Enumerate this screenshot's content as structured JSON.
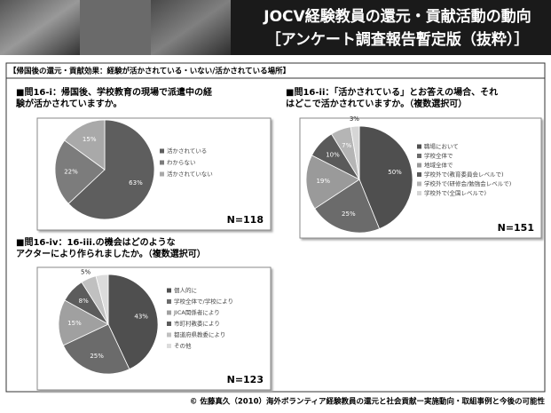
{
  "header": {
    "title_line1": "JOCV経験教員の還元・貢献活動の動向",
    "title_line2": "［アンケート調査報告暫定版（抜粋）］"
  },
  "section": "【帰国後の還元・貢献効果：経験が活かされている・いない/活かされている場所】",
  "chart_data": [
    {
      "type": "pie",
      "title": "■問16-i：帰国後、学校教育の現場で派遣中の経験が活かされていますか。",
      "categories": [
        "活かされている",
        "わからない",
        "活かされていない"
      ],
      "values": [
        63,
        22,
        15
      ],
      "value_labels": [
        "63%",
        "22%",
        "15%"
      ],
      "colors": [
        "#5e5e5e",
        "#7c7c7c",
        "#a9a9a9"
      ],
      "n_label": "N=118"
    },
    {
      "type": "pie",
      "title": "■問16-ii：「活かされている」とお答えの場合、それはどこで活かされていますか。（複数選択可）",
      "categories": [
        "職場において",
        "学校全体で",
        "地域全体で",
        "学校外で(教育委員会レベルで)",
        "学校外で(研修会/勉強会レベルで)",
        "学校外で(全国レベルで)"
      ],
      "values": [
        50,
        25,
        19,
        10,
        7,
        3
      ],
      "value_labels": [
        "50%",
        "25%",
        "19%",
        "10%",
        "7%",
        "3%"
      ],
      "colors": [
        "#4f4f4f",
        "#6b6b6b",
        "#9a9a9a",
        "#5a5a5a",
        "#b5b5b5",
        "#d6d6d6"
      ],
      "n_label": "N=151"
    },
    {
      "type": "pie",
      "title": "■問16-iv：16-iii.の機会はどのようなアクターにより作られましたか。（複数選択可）",
      "categories": [
        "個人的に",
        "学校全体で/学校により",
        "JICA関係者により",
        "市町村教委により",
        "都道府県教委により",
        "その他"
      ],
      "values": [
        43,
        25,
        15,
        8,
        5,
        4
      ],
      "value_labels": [
        "43%",
        "25%",
        "15%",
        "8%",
        "5%",
        null
      ],
      "colors": [
        "#4f4f4f",
        "#6b6b6b",
        "#a0a0a0",
        "#5c5c5c",
        "#c0c0c0",
        "#dcdcdc"
      ],
      "n_label": "N=123"
    }
  ],
  "footer": "© 佐藤真久（2010）海外ボランティア経験教員の還元と社会貢献ー実施動向・取組事例と今後の可能性"
}
